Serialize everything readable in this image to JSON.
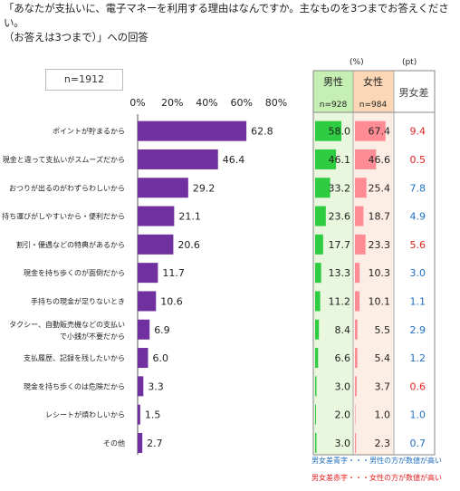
{
  "title": "「あなたが支払いに、電子マネーを利用する理由はなんですか。主なものを3つまでお答えください。\n（お答えは3つまで）」への回答",
  "sample_label": "n=1912",
  "units": {
    "men_women": "(%)",
    "diff": "(pt)"
  },
  "columns": {
    "male": {
      "label": "男性",
      "n": "n=928"
    },
    "female": {
      "label": "女性",
      "n": "n=984"
    },
    "diff": {
      "label": "男女差"
    }
  },
  "legend": {
    "blue": "男女差青字・・・男性の方が数値が高い",
    "red": "男女差赤字・・・女性の方が数値が高い"
  },
  "colors": {
    "bar": "#7030a0",
    "male_bar": "#2ecc40",
    "female_bar": "#ff8c94",
    "male_header_bg": "#c6efb4",
    "female_header_bg": "#fbd7b5",
    "male_col_bg": "#e8f7de",
    "female_col_bg": "#fdeee5",
    "diff_blue": "#1f6fc0",
    "diff_red": "#e02020"
  },
  "chart_data": {
    "type": "bar",
    "orientation": "horizontal",
    "xlim": [
      0,
      80
    ],
    "xticks": [
      "0%",
      "20%",
      "40%",
      "60%",
      "80%"
    ],
    "categories": [
      "ポイントが貯まるから",
      "現金と違って支払いがスムーズだから",
      "おつりが出るのがわずらわしいから",
      "持ち運びがしやすいから・便利だから",
      "割引・優遇などの特典があるから",
      "現金を持ち歩くのが面倒だから",
      "手持ちの現金が足りないとき",
      "タクシー、自動販売機などの支払いで小銭が不要だから",
      "支払履歴、記録を残したいから",
      "現金を持ち歩くのは危険だから",
      "レシートが煩わしいから",
      "その他"
    ],
    "values": [
      62.8,
      46.4,
      29.2,
      21.1,
      20.6,
      11.7,
      10.6,
      6.9,
      6.0,
      3.3,
      1.5,
      2.7
    ],
    "male": [
      58.0,
      46.1,
      33.2,
      23.6,
      17.7,
      13.3,
      11.2,
      8.4,
      6.6,
      3.0,
      2.0,
      3.0
    ],
    "female": [
      67.4,
      46.6,
      25.4,
      18.7,
      23.3,
      10.3,
      10.1,
      5.5,
      5.4,
      3.7,
      1.0,
      2.3
    ],
    "diff": [
      9.4,
      0.5,
      7.8,
      4.9,
      5.6,
      3.0,
      1.1,
      2.9,
      1.2,
      0.6,
      1.0,
      0.7
    ],
    "diff_color": [
      "red",
      "red",
      "blue",
      "blue",
      "red",
      "blue",
      "blue",
      "blue",
      "blue",
      "red",
      "blue",
      "blue"
    ]
  }
}
